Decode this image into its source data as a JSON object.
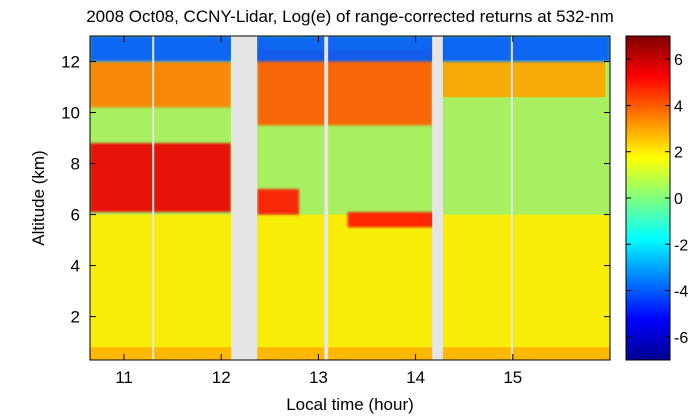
{
  "chart_data": {
    "type": "heatmap",
    "title": "2008 Oct08, CCNY-Lidar, Log(e) of range-corrected returns at 532-nm",
    "xlabel": "Local time (hour)",
    "ylabel": "Altitude (km)",
    "xlim": [
      10.65,
      16.0
    ],
    "ylim": [
      0.3,
      13.0
    ],
    "x_ticks": [
      11,
      12,
      13,
      14,
      15
    ],
    "x_tick_labels": [
      "11",
      "12",
      "13",
      "14",
      "15"
    ],
    "y_ticks": [
      2,
      4,
      6,
      8,
      10,
      12
    ],
    "y_tick_labels": [
      "2",
      "4",
      "6",
      "8",
      "10",
      "12"
    ],
    "colorbar": {
      "range": [
        -7,
        7
      ],
      "ticks": [
        -6,
        -4,
        -2,
        0,
        2,
        4,
        6
      ],
      "tick_labels": [
        "-6",
        "-4",
        "-2",
        "0",
        "2",
        "4",
        "6"
      ],
      "colormap": "jet"
    },
    "data_gaps": [
      {
        "x_from": 11.29,
        "x_to": 11.31
      },
      {
        "x_from": 12.1,
        "x_to": 12.37
      },
      {
        "x_from": 13.06,
        "x_to": 13.1
      },
      {
        "x_from": 14.17,
        "x_to": 14.28
      },
      {
        "x_from": 14.98,
        "x_to": 15.0
      }
    ],
    "gap_color": "#e5e5e5",
    "layers": [
      {
        "feature": "boundary-layer aerosol",
        "x_from": 10.65,
        "x_to": 16.0,
        "base_km": 0.3,
        "top_km": 6.0,
        "value": 2.0
      },
      {
        "feature": "near-surface aerosol",
        "x_from": 10.65,
        "x_to": 16.0,
        "base_km": 0.3,
        "top_km": 0.8,
        "value": 2.8
      },
      {
        "feature": "lower cloud layer",
        "x_from": 10.65,
        "x_to": 12.1,
        "base_km": 6.1,
        "top_km": 8.8,
        "value": 5.5
      },
      {
        "feature": "lower cloud layer",
        "x_from": 12.37,
        "x_to": 12.8,
        "base_km": 6.0,
        "top_km": 7.0,
        "value": 5.0
      },
      {
        "feature": "thin cloud layer",
        "x_from": 13.3,
        "x_to": 14.2,
        "base_km": 5.5,
        "top_km": 6.1,
        "value": 5.0
      },
      {
        "feature": "upper cirrus layer",
        "x_from": 10.65,
        "x_to": 12.1,
        "base_km": 10.2,
        "top_km": 12.0,
        "value": 3.5
      },
      {
        "feature": "upper cirrus layer",
        "x_from": 12.37,
        "x_to": 14.17,
        "base_km": 9.5,
        "top_km": 12.5,
        "value": 4.0
      },
      {
        "feature": "upper cirrus layer",
        "x_from": 14.28,
        "x_to": 15.95,
        "base_km": 10.6,
        "top_km": 12.0,
        "value": 3.0
      },
      {
        "feature": "noisy upper region",
        "x_from": 10.65,
        "x_to": 16.0,
        "base_km": 12.0,
        "top_km": 13.0,
        "value": -4.0
      }
    ]
  }
}
